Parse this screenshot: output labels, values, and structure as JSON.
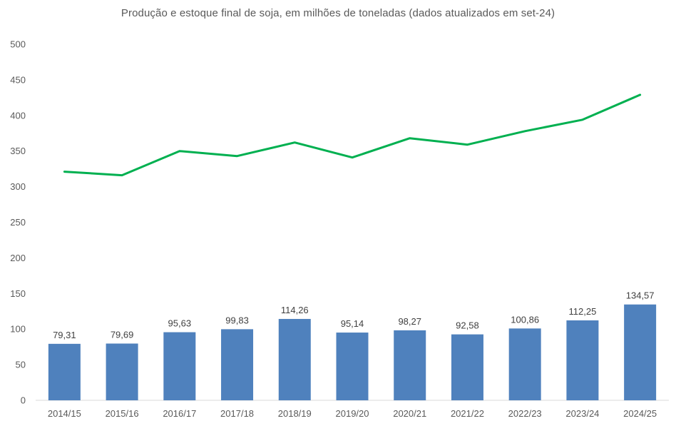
{
  "chart_data": {
    "type": "bar",
    "title": "Produção e estoque final de soja, em milhões de toneladas (dados atualizados em set-24)",
    "categories": [
      "2014/15",
      "2015/16",
      "2016/17",
      "2017/18",
      "2018/19",
      "2019/20",
      "2020/21",
      "2021/22",
      "2022/23",
      "2023/24",
      "2024/25"
    ],
    "series": [
      {
        "kind": "bar",
        "color": "#4f81bd",
        "values": [
          79.31,
          79.69,
          95.63,
          99.83,
          114.26,
          95.14,
          98.27,
          92.58,
          100.86,
          112.25,
          134.57
        ],
        "labels": [
          "79,31",
          "79,69",
          "95,63",
          "99,83",
          "114,26",
          "95,14",
          "98,27",
          "92,58",
          "100,86",
          "112,25",
          "134,57"
        ]
      },
      {
        "kind": "line",
        "color": "#00b050",
        "values": [
          321,
          316,
          350,
          343,
          362,
          341,
          368,
          359,
          378,
          394,
          429
        ]
      }
    ],
    "yticks": [
      "0",
      "50",
      "100",
      "150",
      "200",
      "250",
      "300",
      "350",
      "400",
      "450",
      "500"
    ],
    "ylim": [
      0,
      500
    ],
    "xlabel": "",
    "ylabel": "",
    "grid": false,
    "legend": "none",
    "axis_color": "#d9d9d9"
  }
}
